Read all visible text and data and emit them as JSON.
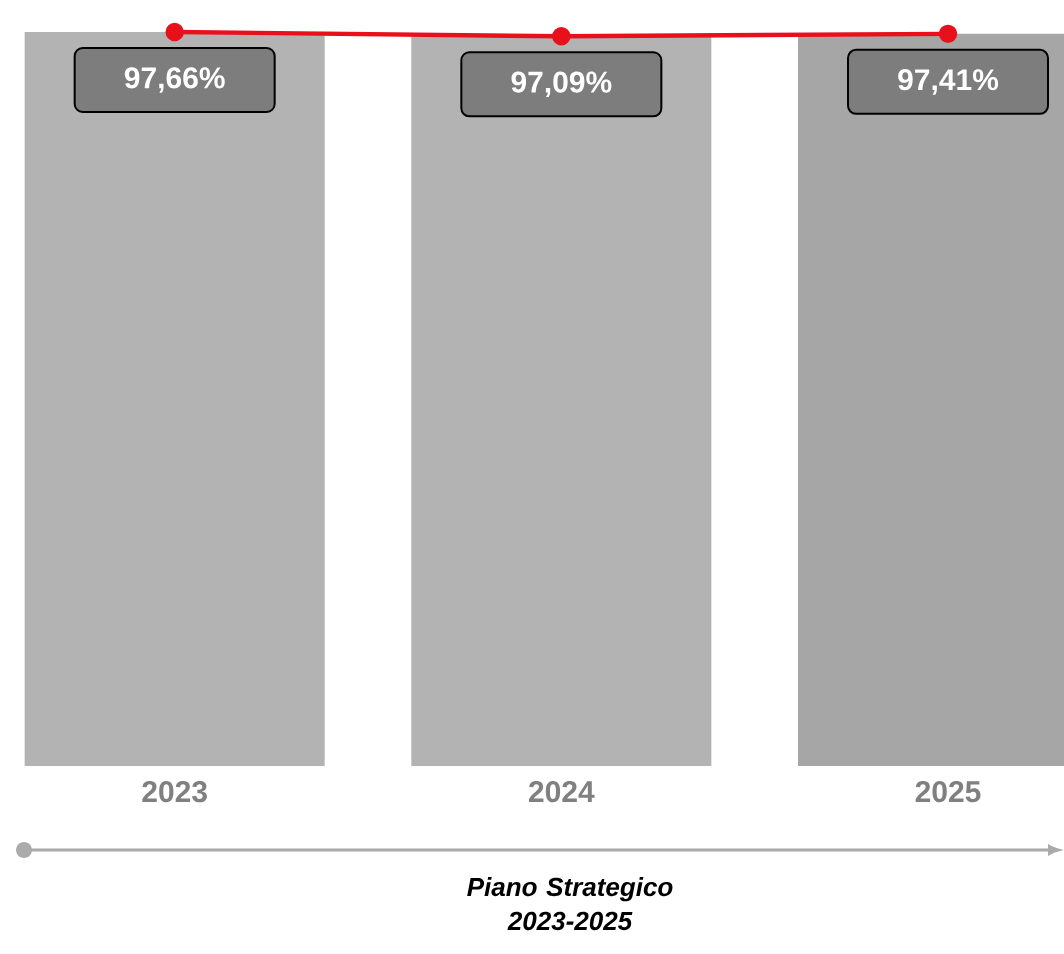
{
  "chart_data": {
    "type": "bar",
    "categories": [
      "2023",
      "2024",
      "2025"
    ],
    "series": [
      {
        "colors": [
          "#b3b3b3",
          "#b3b3b3",
          "#a6a6a6"
        ],
        "values": [
          97.66,
          97.09,
          97.41
        ]
      },
      {
        "type": "line",
        "color": "#e8101a",
        "values": [
          97.66,
          97.09,
          97.41
        ],
        "value_labels": [
          "97,66%",
          "97,09%",
          "97,41%"
        ]
      }
    ],
    "marker": "circle",
    "grid": false,
    "annotations": [
      "Piano Strategico 2023-2025"
    ]
  }
}
